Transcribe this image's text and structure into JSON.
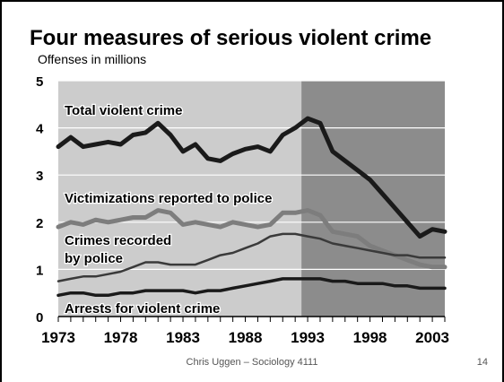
{
  "footer": {
    "credit": "Chris Uggen – Sociology 4111",
    "slide_number": "14"
  },
  "chart_data": {
    "type": "line",
    "title": "Four measures of serious violent crime",
    "ylabel": "Offenses in millions",
    "xlabel": "",
    "ylim": [
      0,
      5
    ],
    "xlim": [
      1973,
      2004
    ],
    "yticks": [
      0,
      1,
      2,
      3,
      4,
      5
    ],
    "xticks": [
      1973,
      1978,
      1983,
      1988,
      1993,
      1998,
      2003
    ],
    "grid": "horizontal",
    "shaded_region": {
      "from": 1992.5,
      "to": 2004
    },
    "colors": {
      "background_light": "#cccccc",
      "background_dark": "#8c8c8c",
      "total": "#1a1a1a",
      "reported": "#7d7d7d",
      "recorded": "#3a3a3a",
      "arrests": "#1a1a1a"
    },
    "x": [
      1973,
      1974,
      1975,
      1976,
      1977,
      1978,
      1979,
      1980,
      1981,
      1982,
      1983,
      1984,
      1985,
      1986,
      1987,
      1988,
      1989,
      1990,
      1991,
      1992,
      1993,
      1994,
      1995,
      1996,
      1997,
      1998,
      1999,
      2000,
      2001,
      2002,
      2003,
      2004
    ],
    "series": [
      {
        "name": "Total violent crime",
        "values": [
          3.6,
          3.8,
          3.6,
          3.65,
          3.7,
          3.65,
          3.85,
          3.9,
          4.1,
          3.85,
          3.5,
          3.65,
          3.35,
          3.3,
          3.45,
          3.55,
          3.6,
          3.5,
          3.85,
          4.0,
          4.2,
          4.1,
          3.5,
          3.3,
          3.1,
          2.9,
          2.6,
          2.3,
          2.0,
          1.7,
          1.85,
          1.8
        ]
      },
      {
        "name": "Victimizations reported to police",
        "values": [
          1.9,
          2.0,
          1.95,
          2.05,
          2.0,
          2.05,
          2.1,
          2.1,
          2.25,
          2.2,
          1.95,
          2.0,
          1.95,
          1.9,
          2.0,
          1.95,
          1.9,
          1.95,
          2.2,
          2.2,
          2.25,
          2.15,
          1.8,
          1.75,
          1.7,
          1.5,
          1.4,
          1.3,
          1.2,
          1.1,
          1.05,
          1.05
        ]
      },
      {
        "name": "Crimes recorded by police",
        "values": [
          0.75,
          0.8,
          0.85,
          0.85,
          0.9,
          0.95,
          1.05,
          1.15,
          1.15,
          1.1,
          1.1,
          1.1,
          1.2,
          1.3,
          1.35,
          1.45,
          1.55,
          1.7,
          1.75,
          1.75,
          1.7,
          1.65,
          1.55,
          1.5,
          1.45,
          1.4,
          1.35,
          1.3,
          1.3,
          1.25,
          1.25,
          1.25
        ]
      },
      {
        "name": "Arrests for violent crime",
        "values": [
          0.45,
          0.5,
          0.5,
          0.45,
          0.45,
          0.5,
          0.5,
          0.55,
          0.55,
          0.55,
          0.55,
          0.5,
          0.55,
          0.55,
          0.6,
          0.65,
          0.7,
          0.75,
          0.8,
          0.8,
          0.8,
          0.8,
          0.75,
          0.75,
          0.7,
          0.7,
          0.7,
          0.65,
          0.65,
          0.6,
          0.6,
          0.6
        ]
      }
    ],
    "annotations": [
      {
        "text": "Total violent crime",
        "series": 0
      },
      {
        "text": "Victimizations reported to police",
        "series": 1
      },
      {
        "text": "Crimes recorded",
        "series": 2
      },
      {
        "text": "by police",
        "series": 2
      },
      {
        "text": "Arrests for violent crime",
        "series": 3
      }
    ]
  }
}
